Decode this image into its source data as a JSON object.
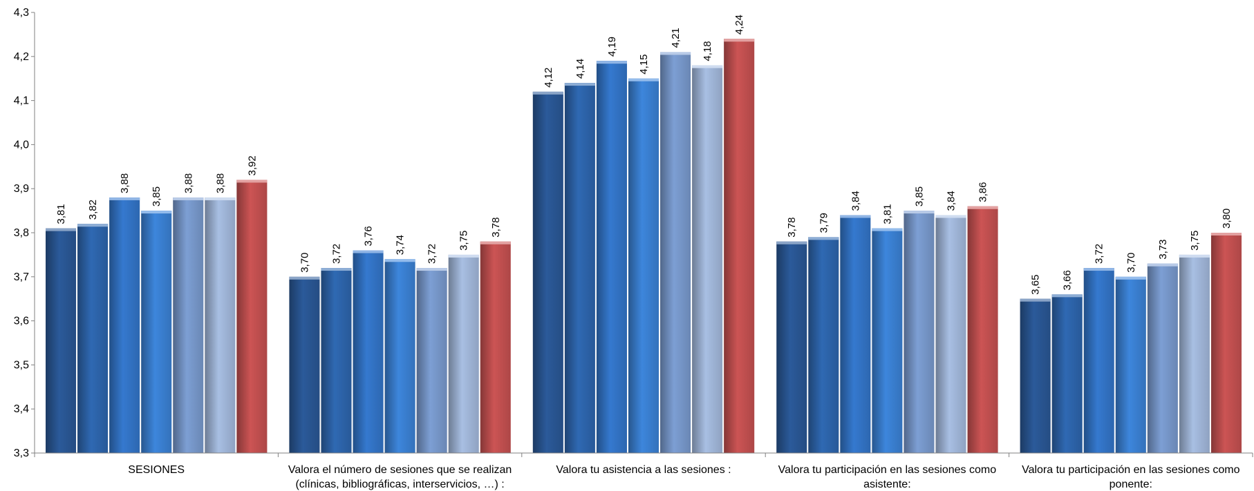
{
  "chart_data": {
    "type": "bar",
    "title": "",
    "xlabel": "",
    "ylabel": "",
    "ylim": [
      3.3,
      4.3
    ],
    "y_ticks": [
      "3,3",
      "3,4",
      "3,5",
      "3,6",
      "3,7",
      "3,8",
      "3,9",
      "4,0",
      "4,1",
      "4,2",
      "4,3"
    ],
    "grid": false,
    "legend": "none",
    "categories": [
      [
        "SESIONES"
      ],
      [
        "Valora el número de sesiones que se realizan",
        "(clínicas, bibliográficas, interservicios, …) :"
      ],
      [
        "Valora tu asistencia a las sesiones :"
      ],
      [
        "Valora tu participación en las sesiones como",
        "asistente:"
      ],
      [
        "Valora tu participación en las sesiones como",
        "ponente:"
      ]
    ],
    "series_colors": [
      "#2b5a9a",
      "#2f69b3",
      "#3579cf",
      "#3d86dc",
      "#7d9fd4",
      "#a8bfe3",
      "#cc5454"
    ],
    "series": [
      {
        "values": [
          3.81,
          3.7,
          4.12,
          3.78,
          3.65
        ],
        "labels": [
          "3,81",
          "3,70",
          "4,12",
          "3,78",
          "3,65"
        ]
      },
      {
        "values": [
          3.82,
          3.72,
          4.14,
          3.79,
          3.66
        ],
        "labels": [
          "3,82",
          "3,72",
          "4,14",
          "3,79",
          "3,66"
        ]
      },
      {
        "values": [
          3.88,
          3.76,
          4.19,
          3.84,
          3.72
        ],
        "labels": [
          "3,88",
          "3,76",
          "4,19",
          "3,84",
          "3,72"
        ]
      },
      {
        "values": [
          3.85,
          3.74,
          4.15,
          3.81,
          3.7
        ],
        "labels": [
          "3,85",
          "3,74",
          "4,15",
          "3,81",
          "3,70"
        ]
      },
      {
        "values": [
          3.88,
          3.72,
          4.21,
          3.85,
          3.73
        ],
        "labels": [
          "3,88",
          "3,72",
          "4,21",
          "3,85",
          "3,73"
        ]
      },
      {
        "values": [
          3.88,
          3.75,
          4.18,
          3.84,
          3.75
        ],
        "labels": [
          "3,88",
          "3,75",
          "4,18",
          "3,84",
          "3,75"
        ]
      },
      {
        "values": [
          3.92,
          3.78,
          4.24,
          3.86,
          3.8
        ],
        "labels": [
          "3,92",
          "3,78",
          "4,24",
          "3,86",
          "3,80"
        ]
      }
    ]
  }
}
